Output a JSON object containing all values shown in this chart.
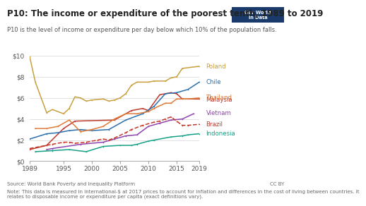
{
  "title": "P10: The income or expenditure of the poorest tenth, 1989 to 2019",
  "subtitle": "P10 is the level of income or expenditure per day below which 10% of the population falls.",
  "source_text": "Source: World Bank Poverty and Inequality Platform",
  "note_text": "Note: This data is measured in international-$ at 2017 prices to account for inflation and differences in the cost of living between countries. It\nrelates to disposable income or expenditure per capita (exact definitions vary).",
  "cc_text": "CC BY",
  "logo_text": "Our World\nin Data",
  "ylim": [
    0,
    10
  ],
  "yticks": [
    0,
    2,
    4,
    6,
    8,
    10
  ],
  "ytick_labels": [
    "$0",
    "$2",
    "$4",
    "$6",
    "$8",
    "$10"
  ],
  "xticks": [
    1989,
    1995,
    2000,
    2005,
    2010,
    2015,
    2019
  ],
  "series": {
    "Poland": {
      "color": "#c8a040",
      "data": {
        "1989": 9.9,
        "1990": 7.5,
        "1992": 4.6,
        "1993": 4.9,
        "1995": 4.5,
        "1996": 5.0,
        "1997": 6.1,
        "1998": 6.0,
        "1999": 5.7,
        "2000": 5.8,
        "2002": 5.9,
        "2003": 5.7,
        "2004": 5.8,
        "2005": 6.0,
        "2006": 6.4,
        "2007": 7.2,
        "2008": 7.5,
        "2010": 7.5,
        "2011": 7.6,
        "2013": 7.6,
        "2014": 7.9,
        "2015": 8.0,
        "2016": 8.8,
        "2019": 9.0
      }
    },
    "Malaysia": {
      "color": "#c0392b",
      "data": {
        "1989": 1.1,
        "1992": 1.5,
        "1995": 3.1,
        "1997": 3.8,
        "2004": 3.9,
        "2007": 4.8,
        "2009": 5.0,
        "2010": 4.8,
        "2012": 6.3,
        "2014": 6.5,
        "2015": 6.4,
        "2016": 5.9,
        "2019": 5.9
      }
    },
    "Chile": {
      "color": "#2c6fad",
      "data": {
        "1989": 2.1,
        "1992": 2.6,
        "1994": 2.7,
        "1996": 2.9,
        "1998": 3.0,
        "2000": 2.9,
        "2003": 3.0,
        "2006": 3.9,
        "2009": 4.5,
        "2011": 5.2,
        "2013": 6.4,
        "2015": 6.5,
        "2017": 6.8,
        "2019": 7.5
      }
    },
    "Thailand": {
      "color": "#e07b39",
      "data": {
        "1990": 3.1,
        "1992": 3.1,
        "1994": 3.3,
        "1996": 3.9,
        "1998": 2.8,
        "2000": 3.0,
        "2002": 3.3,
        "2004": 4.0,
        "2006": 4.5,
        "2008": 4.5,
        "2010": 4.7,
        "2011": 5.0,
        "2013": 5.5,
        "2014": 5.5,
        "2015": 5.9,
        "2017": 5.9,
        "2019": 6.0
      }
    },
    "Vietnam": {
      "color": "#8e44ad",
      "data": {
        "1992": 1.1,
        "1993": 1.2,
        "1998": 1.6,
        "2002": 1.8,
        "2004": 2.1,
        "2006": 2.4,
        "2008": 2.5,
        "2010": 3.3,
        "2012": 3.6,
        "2014": 3.9,
        "2016": 4.0,
        "2018": 4.5
      }
    },
    "Brazil": {
      "color": "#c0392b",
      "data": {
        "1989": 1.2,
        "1993": 1.6,
        "1995": 1.8,
        "1996": 1.8,
        "1997": 1.7,
        "1999": 1.8,
        "2001": 2.0,
        "2002": 2.1,
        "2003": 2.0,
        "2004": 2.2,
        "2006": 2.7,
        "2007": 3.0,
        "2009": 3.4,
        "2011": 3.7,
        "2012": 3.8,
        "2013": 4.0,
        "2014": 4.2,
        "2015": 3.8,
        "2016": 3.4,
        "2017": 3.4,
        "2019": 3.5
      }
    },
    "Indonesia": {
      "color": "#16a085",
      "data": {
        "1990": 0.9,
        "1993": 1.0,
        "1996": 1.1,
        "1999": 0.9,
        "2002": 1.4,
        "2005": 1.5,
        "2007": 1.5,
        "2008": 1.6,
        "2010": 1.9,
        "2011": 2.0,
        "2014": 2.3,
        "2016": 2.4,
        "2017": 2.5,
        "2019": 2.6
      }
    }
  },
  "label_positions": {
    "Poland": {
      "y": 9.0,
      "color": "#c8a040"
    },
    "Malaysia": {
      "y": 5.85,
      "color": "#c0392b"
    },
    "Chile": {
      "y": 7.5,
      "color": "#2c6fad"
    },
    "Thailand": {
      "y": 6.0,
      "color": "#e07b39"
    },
    "Vietnam": {
      "y": 4.55,
      "color": "#8e44ad"
    },
    "Brazil": {
      "y": 3.45,
      "color": "#c0392b"
    },
    "Indonesia": {
      "y": 2.58,
      "color": "#16a085"
    }
  },
  "background_color": "#ffffff",
  "grid_color": "#dddddd",
  "title_fontsize": 8.5,
  "subtitle_fontsize": 6.0,
  "label_fontsize": 6.2,
  "tick_fontsize": 6.5,
  "footer_fontsize": 5.0,
  "logo_color": "#1a3a6b"
}
